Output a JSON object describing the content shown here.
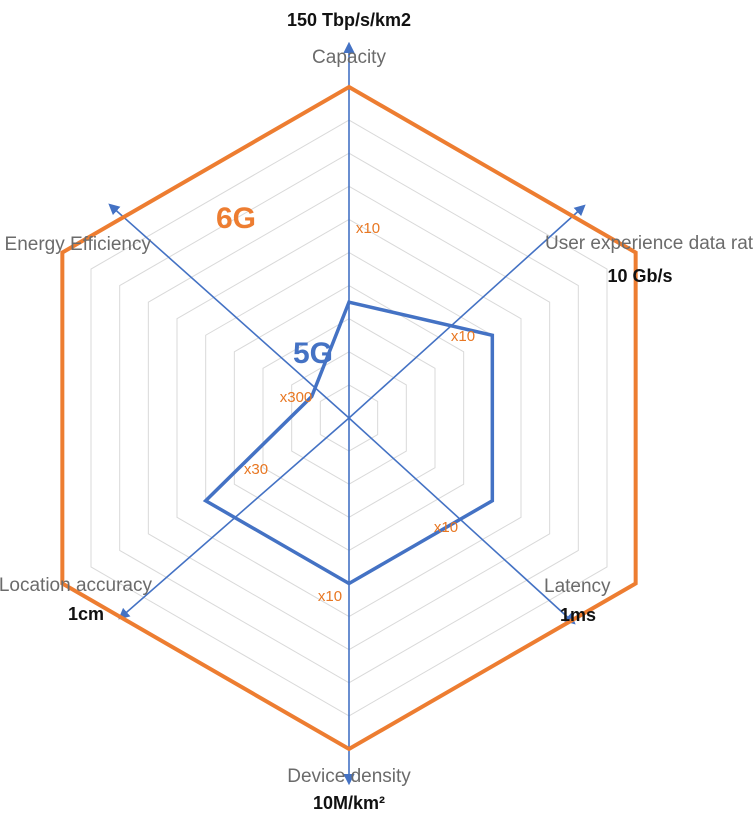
{
  "chart_data": {
    "type": "radar",
    "axes": [
      {
        "key": "capacity",
        "name": "Capacity",
        "target": "150 Tbp/s/km2",
        "ratio": "x10",
        "value_5g": 0.35
      },
      {
        "key": "user-data-rate",
        "name": "User experience data rate",
        "target": "10 Gb/s",
        "ratio": "x10",
        "value_5g": 0.5
      },
      {
        "key": "latency",
        "name": "Latency",
        "target": "1ms",
        "ratio": "x10",
        "value_5g": 0.5
      },
      {
        "key": "device-density",
        "name": "Device density",
        "target": "10M/km²",
        "ratio": "x10",
        "value_5g": 0.5
      },
      {
        "key": "location-accuracy",
        "name": "Location accuracy",
        "target": "1cm",
        "ratio": "x30",
        "value_5g": 0.5
      },
      {
        "key": "energy-efficiency",
        "name": "Energy Efficiency",
        "target": "",
        "ratio": "x300",
        "value_5g": 0.13
      }
    ],
    "series": [
      {
        "name": "6G",
        "values": [
          1,
          1,
          1,
          1,
          1,
          1
        ],
        "color": "#ed7d31"
      },
      {
        "name": "5G",
        "values": [
          0.35,
          0.5,
          0.5,
          0.5,
          0.5,
          0.13
        ],
        "color": "#4472c4"
      }
    ],
    "rings": 10,
    "grid": true,
    "colors": {
      "axis": "#4472c4",
      "grid": "#d9d9d9",
      "six_g": "#ed7d31",
      "five_g": "#4472c4",
      "ratio_text": "#e87722"
    }
  }
}
